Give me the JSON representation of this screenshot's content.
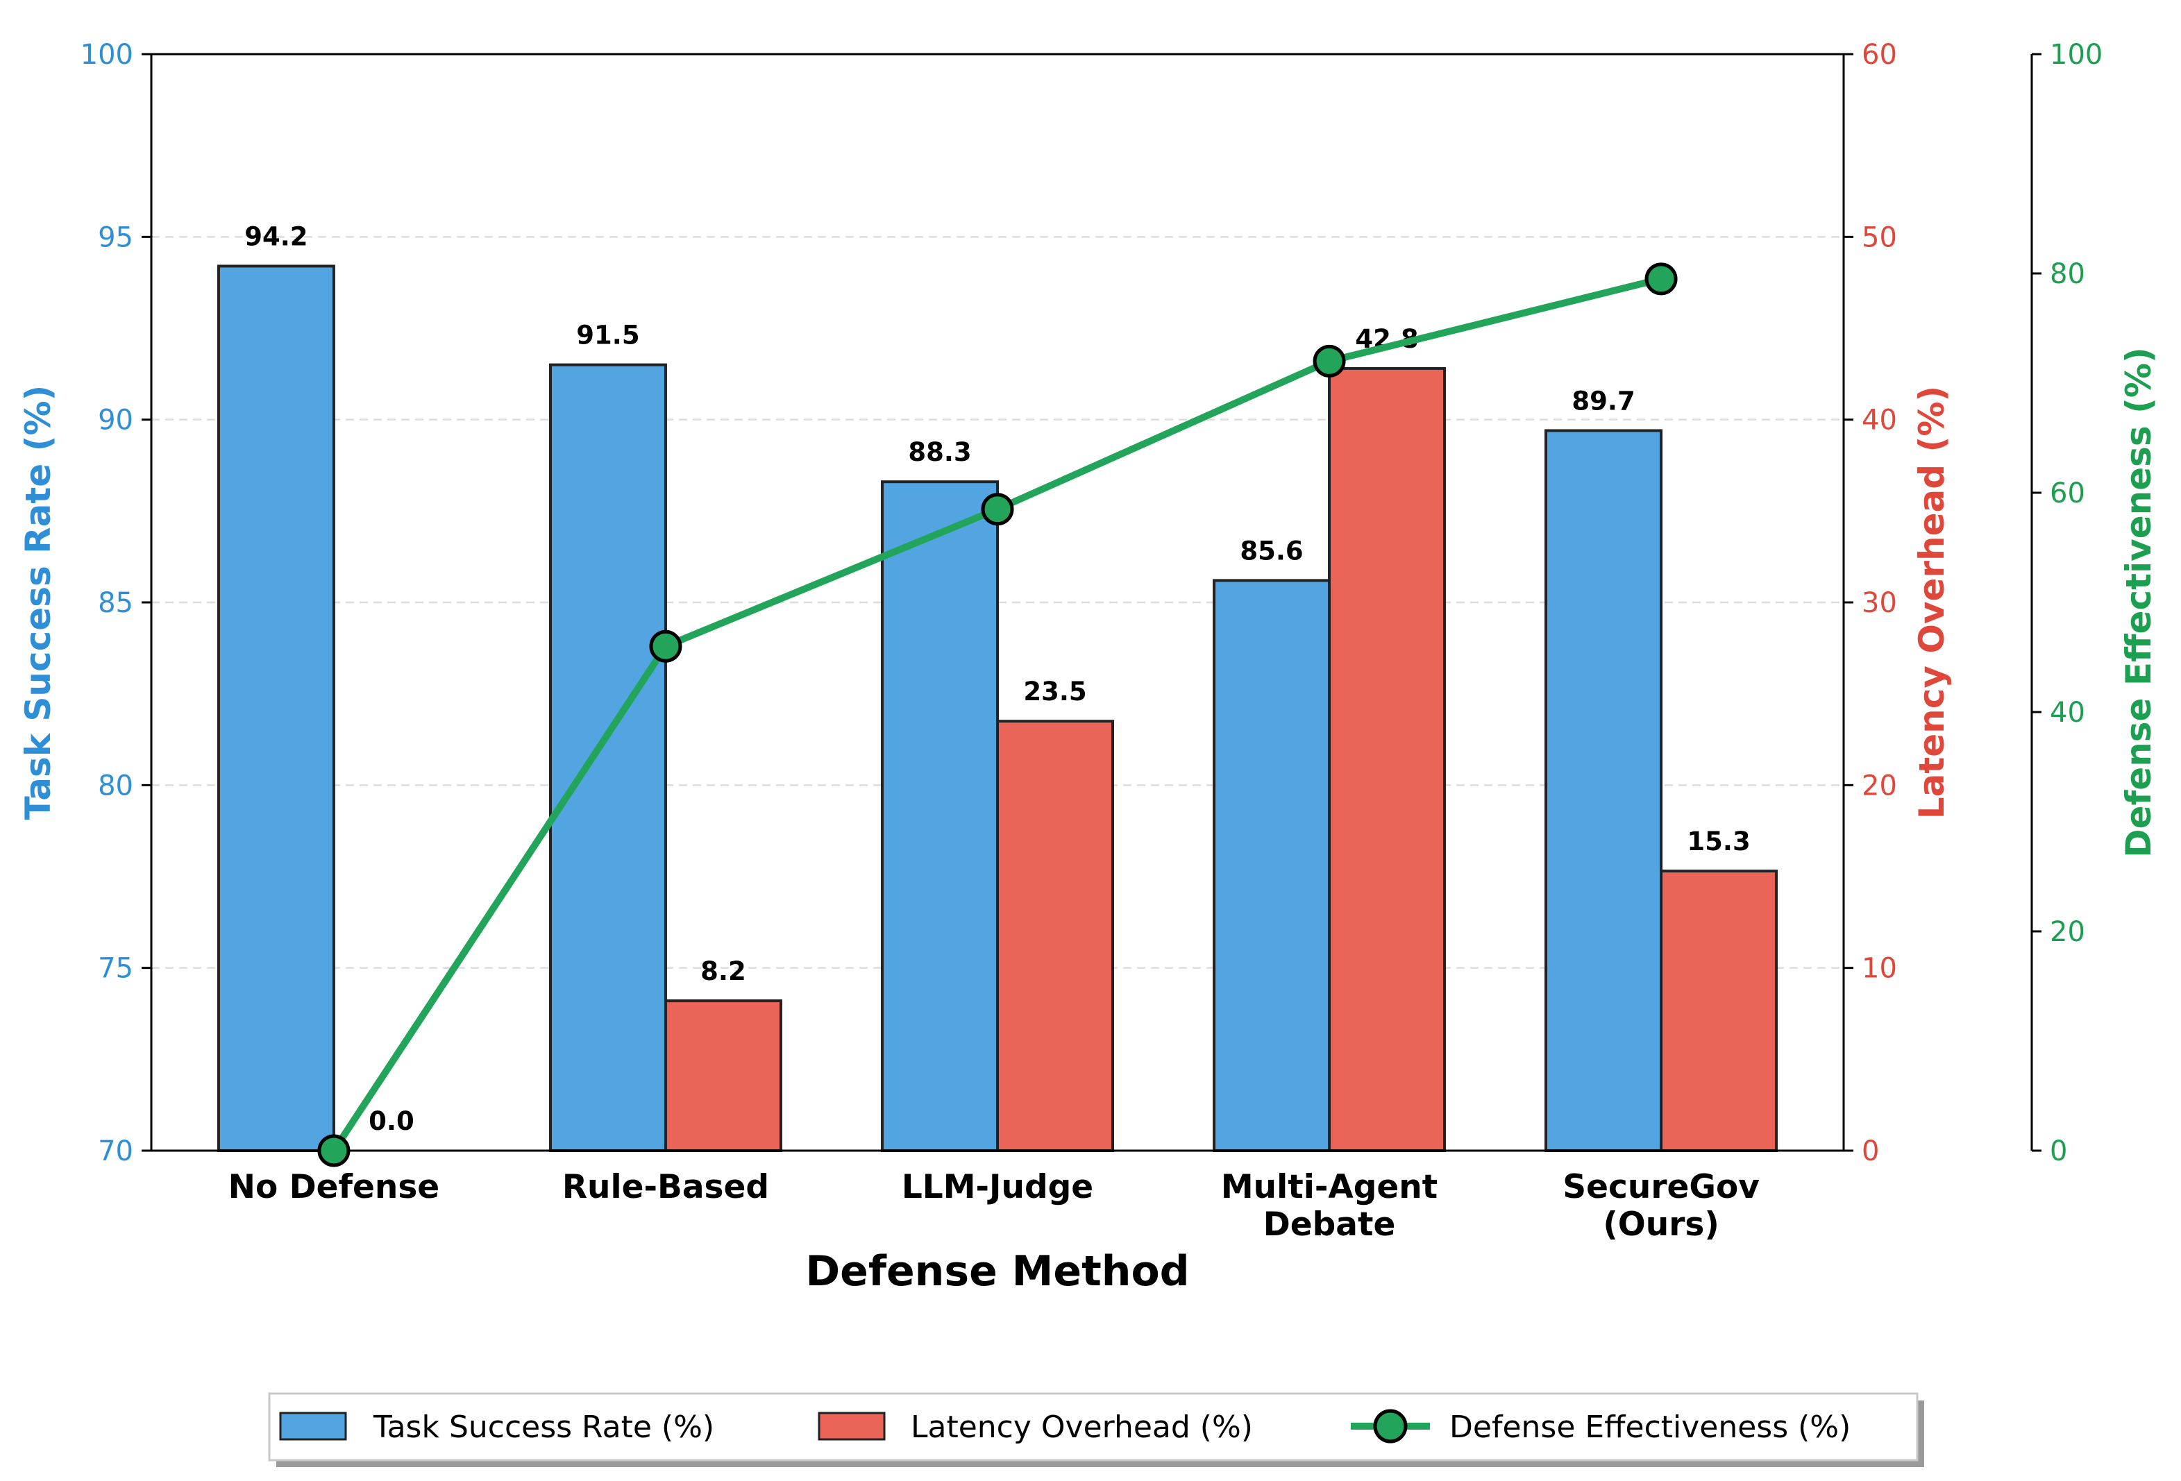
{
  "chart_data": {
    "type": "bar",
    "xlabel": "Defense Method",
    "categories": [
      [
        "No Defense"
      ],
      [
        "Rule-Based"
      ],
      [
        "LLM-Judge"
      ],
      [
        "Multi-Agent",
        "Debate"
      ],
      [
        "SecureGov",
        "(Ours)"
      ]
    ],
    "series": [
      {
        "name": "Task Success Rate (%)",
        "axis": "left",
        "kind": "bar",
        "color": "#52a5e0",
        "values": [
          94.2,
          91.5,
          88.3,
          85.6,
          89.7
        ],
        "labels": [
          "94.2",
          "91.5",
          "88.3",
          "85.6",
          "89.7"
        ]
      },
      {
        "name": "Latency Overhead (%)",
        "axis": "right",
        "kind": "bar",
        "color": "#ea6557",
        "values": [
          0.0,
          8.2,
          23.5,
          42.8,
          15.3
        ],
        "labels": [
          "0.0",
          "8.2",
          "23.5",
          "42.8",
          "15.3"
        ]
      },
      {
        "name": "Defense Effectiveness (%)",
        "axis": "right2",
        "kind": "line",
        "color": "#22a55a",
        "values": [
          0,
          46,
          58.5,
          72,
          79.5
        ]
      }
    ],
    "axes": {
      "left": {
        "label": "Task Success Rate (%)",
        "color": "#2e8fd6",
        "ylim": [
          70,
          100
        ],
        "ticks": [
          "70",
          "75",
          "80",
          "85",
          "90",
          "95",
          "100"
        ],
        "tick_values": [
          70,
          75,
          80,
          85,
          90,
          95,
          100
        ]
      },
      "right": {
        "label": "Latency Overhead (%)",
        "color": "#e0473b",
        "ylim": [
          0,
          60
        ],
        "ticks": [
          "0",
          "10",
          "20",
          "30",
          "40",
          "50",
          "60"
        ],
        "tick_values": [
          0,
          10,
          20,
          30,
          40,
          50,
          60
        ]
      },
      "right2": {
        "label": "Defense Effectiveness (%)",
        "color": "#1d9f52",
        "ylim": [
          0,
          100
        ],
        "ticks": [
          "0",
          "20",
          "40",
          "60",
          "80",
          "100"
        ],
        "tick_values": [
          0,
          20,
          40,
          60,
          80,
          100
        ]
      }
    },
    "grid": "horizontal-dashed",
    "legend_position": "bottom-center"
  }
}
